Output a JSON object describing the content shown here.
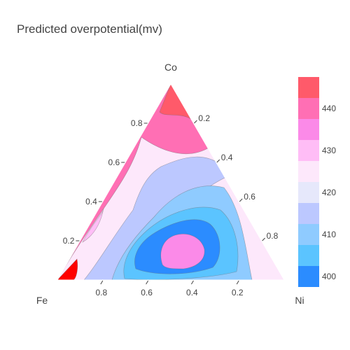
{
  "chart_data": {
    "type": "ternary-contour",
    "title": "Predicted overpotential(mv)",
    "axes": {
      "a": {
        "label": "Co",
        "ticks": [
          "0.2",
          "0.4",
          "0.6",
          "0.8"
        ]
      },
      "b": {
        "label": "Fe",
        "ticks": [
          "0.2",
          "0.4",
          "0.6",
          "0.8"
        ]
      },
      "c": {
        "label": "Ni",
        "ticks": [
          "0.2",
          "0.4",
          "0.6",
          "0.8"
        ]
      }
    },
    "colorbar": {
      "ticks": [
        "400",
        "410",
        "420",
        "430",
        "440"
      ],
      "range": [
        397.5,
        447.5
      ],
      "levels": [
        {
          "value": 400,
          "color": "#2b8cff"
        },
        {
          "value": 405,
          "color": "#5bc4ff"
        },
        {
          "value": 410,
          "color": "#8fcbff"
        },
        {
          "value": 415,
          "color": "#bcc8ff"
        },
        {
          "value": 420,
          "color": "#e6e8fb"
        },
        {
          "value": 425,
          "color": "#fde8fb"
        },
        {
          "value": 430,
          "color": "#ffbdf6"
        },
        {
          "value": 435,
          "color": "#fb8ae8"
        },
        {
          "value": 440,
          "color": "#ff6fb4"
        },
        {
          "value": 445,
          "color": "#ff5a6a"
        },
        {
          "value": 447.5,
          "color": "#ff0000"
        }
      ]
    },
    "regions": [
      {
        "value": 425,
        "note": "upper ternary band"
      },
      {
        "value": 440,
        "note": "Fe-Co edge"
      },
      {
        "value": 445,
        "note": "Co corner"
      },
      {
        "value": 447.5,
        "note": "Fe corner and Fe-Co edge spot"
      },
      {
        "value": 430,
        "note": "Fe-rich interior"
      },
      {
        "value": 415,
        "note": "central basin"
      },
      {
        "value": 410,
        "note": "central basin"
      },
      {
        "value": 405,
        "note": "central basin"
      },
      {
        "value": 400,
        "note": "central minimum"
      },
      {
        "value": 435,
        "note": "near Ni edge"
      }
    ]
  }
}
